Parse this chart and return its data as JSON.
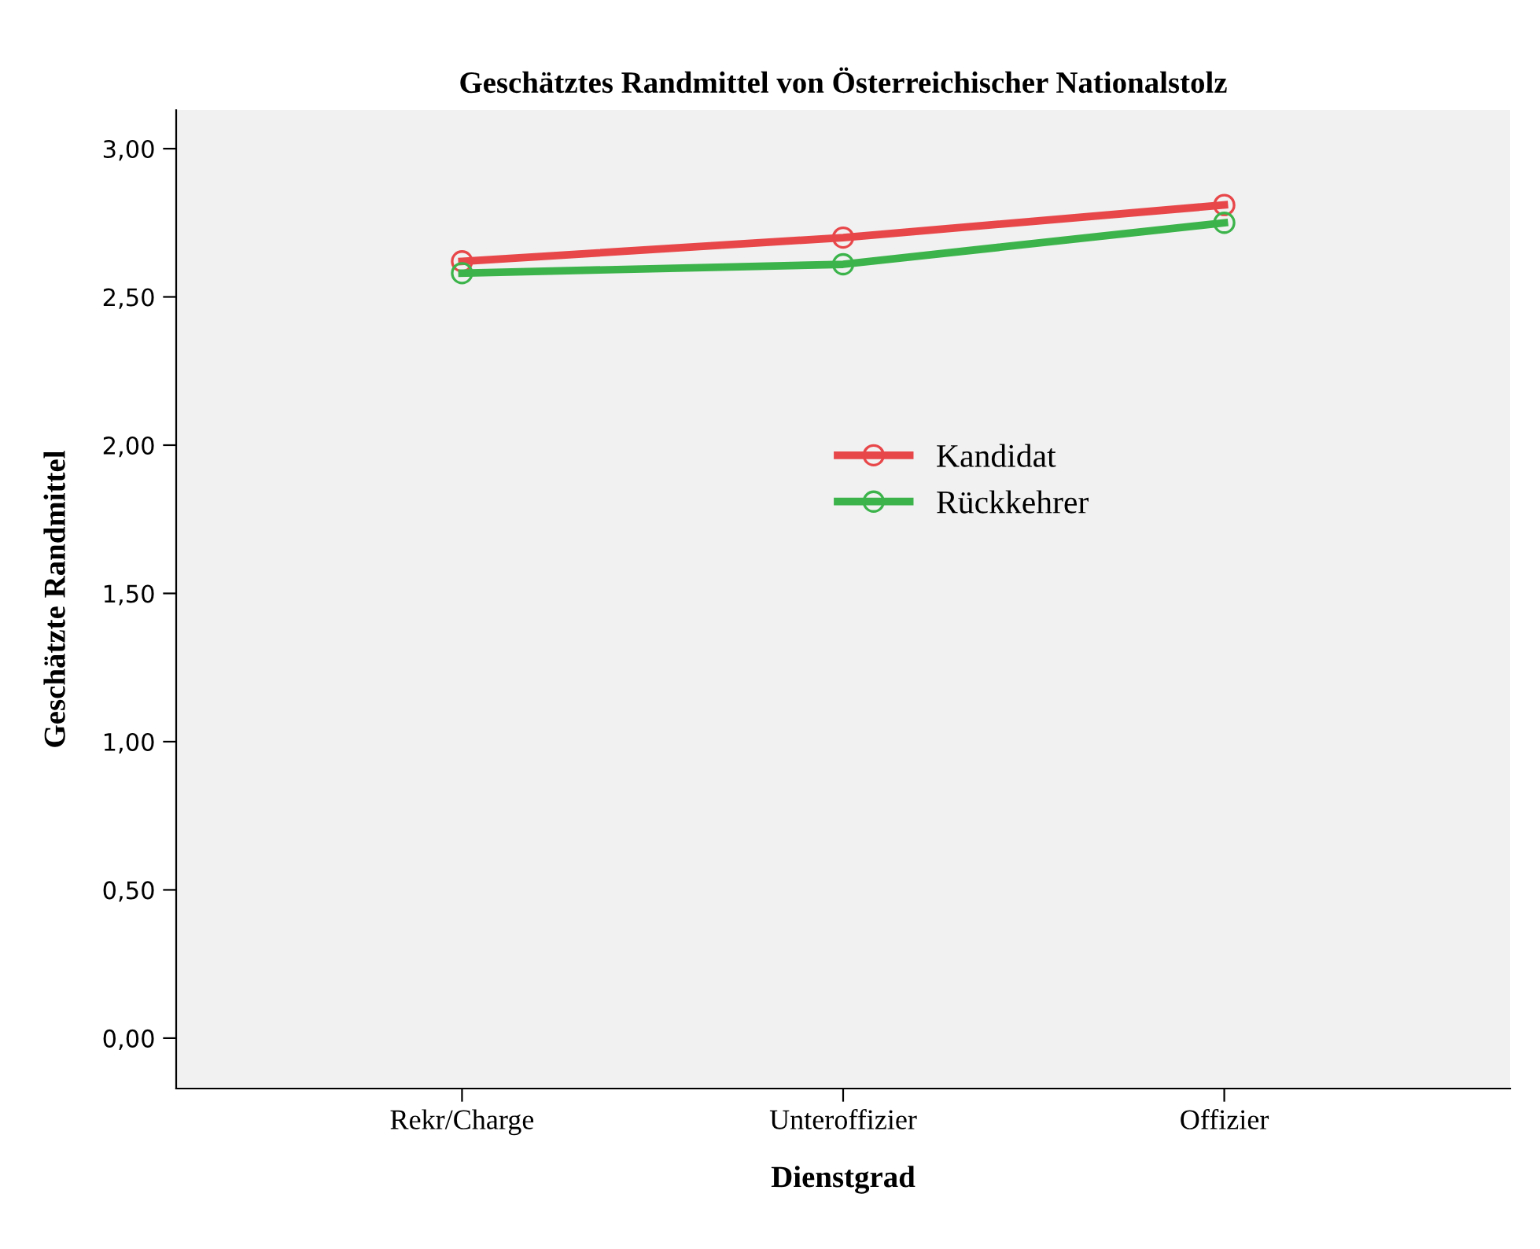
{
  "chart_data": {
    "type": "line",
    "title": "Geschätztes Randmittel von Österreichischer Nationalstolz",
    "xlabel": "Dienstgrad",
    "ylabel": "Geschätzte Randmittel",
    "categories": [
      "Rekr/Charge",
      "Unteroffizier",
      "Offizier"
    ],
    "series": [
      {
        "name": "Kandidat",
        "color": "#e8474a",
        "values": [
          2.62,
          2.7,
          2.81
        ]
      },
      {
        "name": "Rückkehrer",
        "color": "#3cb44b",
        "values": [
          2.58,
          2.61,
          2.75
        ]
      }
    ],
    "ylim": [
      -0.17,
      3.13
    ],
    "yticks": [
      {
        "value": 0,
        "label": "0,00"
      },
      {
        "value": 0.5,
        "label": "0,50"
      },
      {
        "value": 1,
        "label": "1,00"
      },
      {
        "value": 1.5,
        "label": "1,50"
      },
      {
        "value": 2,
        "label": "2,00"
      },
      {
        "value": 2.5,
        "label": "2,50"
      },
      {
        "value": 3,
        "label": "3,00"
      }
    ],
    "marker": "circle",
    "line_style": "solid",
    "grid": false,
    "legend": "center"
  }
}
